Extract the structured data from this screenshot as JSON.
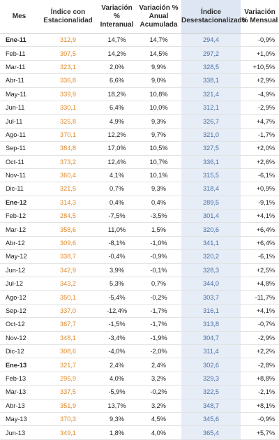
{
  "headers": {
    "mes": "Mes",
    "indice": "Índice con Estacionalidad",
    "var_interanual": "Variación % Interanual",
    "var_acumulada": "Variación % Anual Acumulada",
    "desestacionalizado": "Índice Desestacionalizado",
    "var_mensual": "Variación % Mensual"
  },
  "colors": {
    "index_text": "#e0892a",
    "desest_text": "#4a6fa5",
    "desest_bg": "#e6edf6"
  },
  "rows": [
    {
      "mes": "Ene-11",
      "bold": true,
      "indice": "312,9",
      "interanual": "14,7%",
      "acumulada": "14,7%",
      "desest": "294,4",
      "mensual": "-0,9%"
    },
    {
      "mes": "Feb-11",
      "bold": false,
      "indice": "307,5",
      "interanual": "14,2%",
      "acumulada": "14,5%",
      "desest": "297,2",
      "mensual": "+1,0%"
    },
    {
      "mes": "Mar-11",
      "bold": false,
      "indice": "323,1",
      "interanual": "2,0%",
      "acumulada": "9,9%",
      "desest": "328,5",
      "mensual": "+10,5%"
    },
    {
      "mes": "Abr-11",
      "bold": false,
      "indice": "336,8",
      "interanual": "6,6%",
      "acumulada": "9,0%",
      "desest": "338,1",
      "mensual": "+2,9%"
    },
    {
      "mes": "May-11",
      "bold": false,
      "indice": "339,9",
      "interanual": "18,2%",
      "acumulada": "10,8%",
      "desest": "321,4",
      "mensual": "-4,9%"
    },
    {
      "mes": "Jun-11",
      "bold": false,
      "indice": "330,1",
      "interanual": "6,4%",
      "acumulada": "10,0%",
      "desest": "312,1",
      "mensual": "-2,9%"
    },
    {
      "mes": "Jul-11",
      "bold": false,
      "indice": "325,8",
      "interanual": "4,9%",
      "acumulada": "9,3%",
      "desest": "326,7",
      "mensual": "+4,7%"
    },
    {
      "mes": "Ago-11",
      "bold": false,
      "indice": "370,1",
      "interanual": "12,2%",
      "acumulada": "9,7%",
      "desest": "321,0",
      "mensual": "-1,7%"
    },
    {
      "mes": "Sep-11",
      "bold": false,
      "indice": "384,8",
      "interanual": "17,0%",
      "acumulada": "10,5%",
      "desest": "327,5",
      "mensual": "+2,0%"
    },
    {
      "mes": "Oct-11",
      "bold": false,
      "indice": "373,2",
      "interanual": "12,4%",
      "acumulada": "10,7%",
      "desest": "336,1",
      "mensual": "+2,6%"
    },
    {
      "mes": "Nov-11",
      "bold": false,
      "indice": "360,4",
      "interanual": "4,1%",
      "acumulada": "10,1%",
      "desest": "315,5",
      "mensual": "-6,1%"
    },
    {
      "mes": "Dic-11",
      "bold": false,
      "indice": "321,5",
      "interanual": "0,7%",
      "acumulada": "9,3%",
      "desest": "318,4",
      "mensual": "+0,9%"
    },
    {
      "mes": "Ene-12",
      "bold": true,
      "indice": "314,3",
      "interanual": "0,4%",
      "acumulada": "0,4%",
      "desest": "289,5",
      "mensual": "-9,1%"
    },
    {
      "mes": "Feb-12",
      "bold": false,
      "indice": "284,5",
      "interanual": "-7,5%",
      "acumulada": "-3,5%",
      "desest": "301,4",
      "mensual": "+4,1%"
    },
    {
      "mes": "Mar-12",
      "bold": false,
      "indice": "358,6",
      "interanual": "11,0%",
      "acumulada": "1,5%",
      "desest": "320,6",
      "mensual": "+6,4%"
    },
    {
      "mes": "Abr-12",
      "bold": false,
      "indice": "309,6",
      "interanual": "-8,1%",
      "acumulada": "-1,0%",
      "desest": "341,1",
      "mensual": "+6,4%"
    },
    {
      "mes": "May-12",
      "bold": false,
      "indice": "338,7",
      "interanual": "-0,4%",
      "acumulada": "-0,9%",
      "desest": "320,2",
      "mensual": "-6,1%"
    },
    {
      "mes": "Jun-12",
      "bold": false,
      "indice": "342,9",
      "interanual": "3,9%",
      "acumulada": "-0,1%",
      "desest": "328,3",
      "mensual": "+2,5%"
    },
    {
      "mes": "Jul-12",
      "bold": false,
      "indice": "343,2",
      "interanual": "5,3%",
      "acumulada": "0,7%",
      "desest": "344,0",
      "mensual": "+4,8%"
    },
    {
      "mes": "Ago-12",
      "bold": false,
      "indice": "350,1",
      "interanual": "-5,4%",
      "acumulada": "-0,2%",
      "desest": "303,7",
      "mensual": "-11,7%"
    },
    {
      "mes": "Sep-12",
      "bold": false,
      "indice": "337,0",
      "interanual": "-12,4%",
      "acumulada": "-1,7%",
      "desest": "316,1",
      "mensual": "+4,1%"
    },
    {
      "mes": "Oct-12",
      "bold": false,
      "indice": "367,7",
      "interanual": "-1,5%",
      "acumulada": "-1,7%",
      "desest": "313,8",
      "mensual": "-0,7%"
    },
    {
      "mes": "Nov-12",
      "bold": false,
      "indice": "348,1",
      "interanual": "-3,4%",
      "acumulada": "-1,9%",
      "desest": "304,7",
      "mensual": "-2,9%"
    },
    {
      "mes": "Dic-12",
      "bold": false,
      "indice": "308,6",
      "interanual": "-4,0%",
      "acumulada": "-2,0%",
      "desest": "311,4",
      "mensual": "+2,2%"
    },
    {
      "mes": "Ene-13",
      "bold": true,
      "indice": "321,7",
      "interanual": "2,4%",
      "acumulada": "2,4%",
      "desest": "302,6",
      "mensual": "-2,8%"
    },
    {
      "mes": "Feb-13",
      "bold": false,
      "indice": "295,9",
      "interanual": "4,0%",
      "acumulada": "3,2%",
      "desest": "329,3",
      "mensual": "+8,8%"
    },
    {
      "mes": "Mar-13",
      "bold": false,
      "indice": "337,5",
      "interanual": "-5,9%",
      "acumulada": "-0,2%",
      "desest": "322,5",
      "mensual": "-2,1%"
    },
    {
      "mes": "Abr-13",
      "bold": false,
      "indice": "351,9",
      "interanual": "13,7%",
      "acumulada": "3,2%",
      "desest": "348,7",
      "mensual": "+8,1%"
    },
    {
      "mes": "May-13",
      "bold": false,
      "indice": "370,3",
      "interanual": "9,3%",
      "acumulada": "4,5%",
      "desest": "345,6",
      "mensual": "-0,9%"
    },
    {
      "mes": "Jun-13",
      "bold": false,
      "indice": "349,1",
      "interanual": "1,8%",
      "acumulada": "4,0%",
      "desest": "365,4",
      "mensual": "+5,7%"
    }
  ]
}
